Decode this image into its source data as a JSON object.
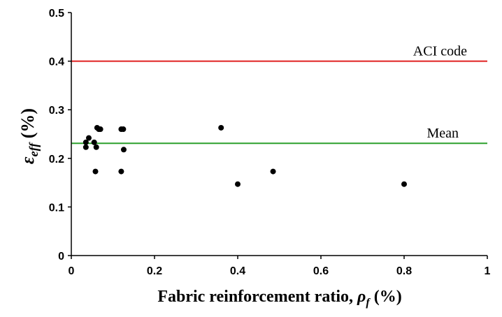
{
  "chart_data": {
    "type": "scatter",
    "xlabel_main": "Fabric reinforcement ratio, ",
    "xlabel_symbol": "ρ",
    "xlabel_sub": "f",
    "xlabel_unit": " (%)",
    "ylabel_symbol": "ε",
    "ylabel_sub": "eff",
    "ylabel_unit": " (%)",
    "xlim": [
      0,
      1
    ],
    "ylim": [
      0,
      0.5
    ],
    "x_ticks": [
      0,
      0.2,
      0.4,
      0.6,
      0.8,
      1
    ],
    "x_tick_labels": [
      "0",
      "0.2",
      "0.4",
      "0.6",
      "0.8",
      "1"
    ],
    "y_ticks": [
      0,
      0.1,
      0.2,
      0.3,
      0.4,
      0.5
    ],
    "y_tick_labels": [
      "0",
      "0.1",
      "0.2",
      "0.3",
      "0.4",
      "0.5"
    ],
    "grid": false,
    "points": [
      {
        "x": 0.035,
        "y": 0.233
      },
      {
        "x": 0.035,
        "y": 0.223
      },
      {
        "x": 0.042,
        "y": 0.242
      },
      {
        "x": 0.055,
        "y": 0.233
      },
      {
        "x": 0.058,
        "y": 0.173
      },
      {
        "x": 0.06,
        "y": 0.223
      },
      {
        "x": 0.062,
        "y": 0.263
      },
      {
        "x": 0.066,
        "y": 0.26
      },
      {
        "x": 0.07,
        "y": 0.26
      },
      {
        "x": 0.12,
        "y": 0.26
      },
      {
        "x": 0.125,
        "y": 0.26
      },
      {
        "x": 0.12,
        "y": 0.173
      },
      {
        "x": 0.126,
        "y": 0.218
      },
      {
        "x": 0.36,
        "y": 0.263
      },
      {
        "x": 0.4,
        "y": 0.147
      },
      {
        "x": 0.485,
        "y": 0.173
      },
      {
        "x": 0.8,
        "y": 0.147
      }
    ],
    "lines": [
      {
        "label": "ACI code",
        "y": 0.4,
        "color": "#e02020"
      },
      {
        "label": "Mean",
        "y": 0.231,
        "color": "#2ca02c"
      }
    ],
    "marker_color": "#000000"
  }
}
